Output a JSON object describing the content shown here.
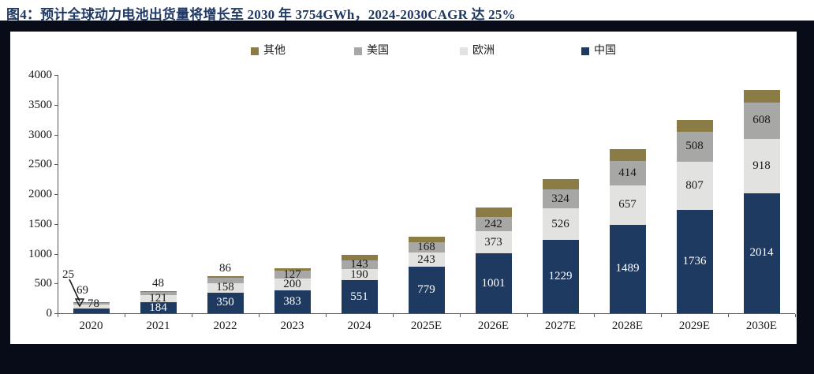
{
  "title": "图4：预计全球动力电池出货量将增长至 2030 年 3754GWh，2024-2030CAGR 达 25%",
  "colors": {
    "title_navy": "#1f3864",
    "frame_dark": "#070c18",
    "axis_gray": "#595959",
    "china_navy": "#1f3a60",
    "europe_lightgray": "#e2e2e0",
    "us_gray": "#a7a7a5",
    "other_olive": "#8b7b45",
    "label_dark": "#1a1a1a",
    "label_light": "#ffffff"
  },
  "legend": {
    "order": [
      "其他",
      "美国",
      "欧洲",
      "中国"
    ]
  },
  "chart_data": {
    "type": "bar",
    "stacked": true,
    "title": "预计全球动力电池出货量将增长至 2030 年 3754GWh，2024-2030CAGR 达 25%",
    "unit": "GWh",
    "categories": [
      "2020",
      "2021",
      "2022",
      "2023",
      "2024",
      "2025E",
      "2026E",
      "2027E",
      "2028E",
      "2029E",
      "2030E"
    ],
    "series": [
      {
        "name": "中国",
        "color": "#1f3a60",
        "labeled": true,
        "label_color": "#ffffff",
        "values": [
          78,
          184,
          350,
          383,
          551,
          779,
          1001,
          1229,
          1489,
          1736,
          2014
        ]
      },
      {
        "name": "欧洲",
        "color": "#e2e2e0",
        "labeled": true,
        "label_color": "#1a1a1a",
        "values": [
          69,
          121,
          158,
          200,
          190,
          243,
          373,
          526,
          657,
          807,
          918
        ]
      },
      {
        "name": "美国",
        "color": "#a7a7a5",
        "labeled": true,
        "label_color": "#1a1a1a",
        "values": [
          25,
          48,
          86,
          127,
          143,
          168,
          242,
          324,
          414,
          508,
          608
        ]
      },
      {
        "name": "其他",
        "color": "#8b7b45",
        "labeled": false,
        "estimated": true,
        "values": [
          10,
          15,
          35,
          50,
          90,
          100,
          160,
          175,
          195,
          200,
          214
        ]
      }
    ],
    "ylim": [
      0,
      4000
    ],
    "ytick_step": 500,
    "grid": false,
    "legend_position": "top",
    "annotations_2020": {
      "us": "25",
      "europe": "69",
      "china": "78"
    }
  }
}
